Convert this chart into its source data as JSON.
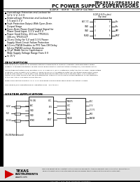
{
  "title_line1": "TPS3511/TPS3511P",
  "title_line2": "PC POWER SUPPLY SUPERVISORS",
  "subtitle": "S-DIP-8    SOP-8    SC-DIP-8 (14-Thin)",
  "features": [
    "Overvoltage Protection and Lockout for",
    "12 V, 5 V, 3.3 V",
    "Undervoltage Protection and Lockout for",
    "5 V and 3.3 V",
    "Fault Protection Output With Open-Drain",
    "Output Stage",
    "Open-Drain Power Good Output Signal for",
    "Power Good Input, 3.3 V and 5 V",
    "Power Good Delay, 200-ms TPS3511;",
    "100-ms TPS3511P",
    "15-ms Delay for 5-V and 3.3-V Power",
    "Supply Short-Circuit Failure Protection",
    "3.5-ms PWGB Enables to PFO Turn-Off Delay",
    "64-ms PWGB Lockout Hysteresis",
    "15 pF Width Series Capacitance",
    "Wide Supply Voltage Range From 0 V",
    "to 15 V"
  ],
  "pin_label": "8-DIP-8 (8-Pin-dots)",
  "pin_label2": "(Top-view)",
  "pin_names_left": [
    "ACC CC",
    "GND",
    "GND",
    "PGND"
  ],
  "pin_names_right": [
    "Vcc",
    "Pcc",
    "VPP",
    "PRST"
  ],
  "pin_numbers_left": [
    "1",
    "2",
    "3",
    "4"
  ],
  "pin_numbers_right": [
    "8",
    "7",
    "6",
    "5"
  ],
  "section_description": "DESCRIPTION",
  "section_application": "SYSTEM APPLICATION",
  "desc_lines": [
    "The TPS3511/P is designed to minimize external components of personal computer switching power supply",
    "systems. It provides protection circuits, power good indicator, fault protection output(PFO), and PWGB control.",
    "",
    "Overvoltage protection (OVP) monitors 3.3 V, 5 V and 12 V (12 V is optionally detected) the Vcc pins. Undervoltage",
    "protection (UVP) monitors 3.3 V and 5 V. When an OV or UV condition is detected, the power good output (PGO)",
    "is set to low and PFO is set to fault high. PWGB becomes to high resets the protection latch. UVP hysteresis is",
    "added 75 ms after PWGB is set low and debounced. There is a 3.5-ms delay period additional 64-ms debounce",
    "at turn-off, there is no delay during turn-on.",
    "",
    "Power good feature monitors +5 V, 3.3 V and issues a power good signal when the output is ready.",
    "",
    "The TPS3511/P is characterized for operation from  -40C to 85 C."
  ],
  "bg_color": "#ffffff",
  "text_color": "#000000",
  "header_bg": "#000000",
  "header_text": "#ffffff",
  "sidebar_color": "#000000",
  "ti_logo_color": "#cc0000",
  "footer_note": "Please be aware that an important notice concerning availability, standard warranty, and use in critical applications of Texas Instruments semiconductor products and disclaimers thereto appears at the end of this data sheet.",
  "copyright": "Copyright 2002, Texas Instruments Incorporated",
  "page_num": "1"
}
